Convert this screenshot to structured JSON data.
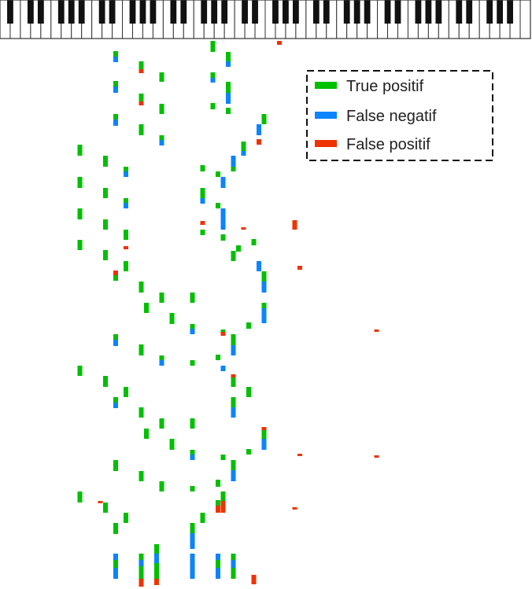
{
  "chart_data": {
    "type": "piano-roll",
    "title": "",
    "xlabel": "",
    "ylabel": "",
    "x_axis": "pitch (piano keyboard, left = low, right = high)",
    "y_axis": "time (top to bottom)",
    "grid": false,
    "legend_position": "top-right",
    "legend": {
      "style": "dashed-box",
      "items": [
        {
          "label": "True positif",
          "color": "#00c000"
        },
        {
          "label": "False negatif",
          "color": "#0a84ff"
        },
        {
          "label": "False positif",
          "color": "#ee3300"
        }
      ]
    },
    "colors": {
      "tp": "#00c000",
      "fn": "#0a84ff",
      "fp": "#ee3300",
      "keyboard_white": "#ffffff",
      "keyboard_black": "#111111",
      "keyboard_outline": "#333333"
    },
    "keyboard": {
      "white_keys": 52
    },
    "notes": [
      {
        "key": 54,
        "t": [
          52,
          57
        ],
        "c": "fp"
      },
      {
        "key": 22,
        "t": [
          65,
          72
        ],
        "c": "tp"
      },
      {
        "key": 22,
        "t": [
          72,
          79
        ],
        "c": "fn"
      },
      {
        "key": 27,
        "t": [
          78,
          88
        ],
        "c": "tp"
      },
      {
        "key": 27,
        "t": [
          88,
          93
        ],
        "c": "fp"
      },
      {
        "key": 31,
        "t": [
          92,
          104
        ],
        "c": "tp"
      },
      {
        "key": 22,
        "t": [
          103,
          110
        ],
        "c": "tp"
      },
      {
        "key": 22,
        "t": [
          110,
          118
        ],
        "c": "fn"
      },
      {
        "key": 27,
        "t": [
          119,
          129
        ],
        "c": "tp"
      },
      {
        "key": 27,
        "t": [
          129,
          134
        ],
        "c": "fp"
      },
      {
        "key": 31,
        "t": [
          132,
          145
        ],
        "c": "tp"
      },
      {
        "key": 22,
        "t": [
          145,
          152
        ],
        "c": "tp"
      },
      {
        "key": 22,
        "t": [
          152,
          160
        ],
        "c": "fn"
      },
      {
        "key": 27,
        "t": [
          158,
          172
        ],
        "c": "tp"
      },
      {
        "key": 31,
        "t": [
          172,
          178
        ],
        "c": "tp"
      },
      {
        "key": 31,
        "t": [
          178,
          185
        ],
        "c": "fn"
      },
      {
        "key": 41,
        "t": [
          52,
          66
        ],
        "c": "tp"
      },
      {
        "key": 44,
        "t": [
          66,
          78
        ],
        "c": "tp"
      },
      {
        "key": 44,
        "t": [
          78,
          85
        ],
        "c": "fn"
      },
      {
        "key": 41,
        "t": [
          92,
          99
        ],
        "c": "tp"
      },
      {
        "key": 41,
        "t": [
          99,
          105
        ],
        "c": "fn"
      },
      {
        "key": 44,
        "t": [
          104,
          118
        ],
        "c": "tp"
      },
      {
        "key": 44,
        "t": [
          118,
          132
        ],
        "c": "fn"
      },
      {
        "key": 41,
        "t": [
          131,
          139
        ],
        "c": "tp"
      },
      {
        "key": 44,
        "t": [
          137,
          145
        ],
        "c": "tp"
      },
      {
        "key": 51,
        "t": [
          145,
          158
        ],
        "c": "tp"
      },
      {
        "key": 50,
        "t": [
          158,
          172
        ],
        "c": "fn"
      },
      {
        "key": 50,
        "t": [
          177,
          184
        ],
        "c": "fp"
      },
      {
        "key": 47,
        "t": [
          180,
          192
        ],
        "c": "tp"
      },
      {
        "key": 47,
        "t": [
          192,
          198
        ],
        "c": "fn"
      },
      {
        "key": 45,
        "t": [
          198,
          212
        ],
        "c": "fn"
      },
      {
        "key": 45,
        "t": [
          212,
          218
        ],
        "c": "tp"
      },
      {
        "key": 15,
        "t": [
          184,
          198
        ],
        "c": "tp"
      },
      {
        "key": 20,
        "t": [
          198,
          212
        ],
        "c": "tp"
      },
      {
        "key": 24,
        "t": [
          212,
          218
        ],
        "c": "tp"
      },
      {
        "key": 24,
        "t": [
          218,
          225
        ],
        "c": "fn"
      },
      {
        "key": 15,
        "t": [
          225,
          239
        ],
        "c": "tp"
      },
      {
        "key": 20,
        "t": [
          239,
          252
        ],
        "c": "tp"
      },
      {
        "key": 24,
        "t": [
          252,
          258
        ],
        "c": "tp"
      },
      {
        "key": 24,
        "t": [
          258,
          265
        ],
        "c": "fn"
      },
      {
        "key": 15,
        "t": [
          265,
          279
        ],
        "c": "tp"
      },
      {
        "key": 20,
        "t": [
          279,
          292
        ],
        "c": "tp"
      },
      {
        "key": 24,
        "t": [
          292,
          305
        ],
        "c": "tp"
      },
      {
        "key": 24,
        "t": [
          313,
          317
        ],
        "c": "fp"
      },
      {
        "key": 15,
        "t": [
          305,
          318
        ],
        "c": "tp"
      },
      {
        "key": 20,
        "t": [
          318,
          331
        ],
        "c": "tp"
      },
      {
        "key": 22,
        "t": [
          344,
          350
        ],
        "c": "fp"
      },
      {
        "key": 22,
        "t": [
          350,
          357
        ],
        "c": "tp"
      },
      {
        "key": 24,
        "t": [
          332,
          345
        ],
        "c": "tp"
      },
      {
        "key": 39,
        "t": [
          210,
          218
        ],
        "c": "tp"
      },
      {
        "key": 42,
        "t": [
          218,
          225
        ],
        "c": "tp"
      },
      {
        "key": 43,
        "t": [
          225,
          239
        ],
        "c": "fn"
      },
      {
        "key": 39,
        "t": [
          239,
          252
        ],
        "c": "tp"
      },
      {
        "key": 39,
        "t": [
          252,
          259
        ],
        "c": "fn"
      },
      {
        "key": 42,
        "t": [
          258,
          265
        ],
        "c": "tp"
      },
      {
        "key": 43,
        "t": [
          265,
          280
        ],
        "c": "fn"
      },
      {
        "key": 43,
        "t": [
          280,
          292
        ],
        "c": "fn"
      },
      {
        "key": 39,
        "t": [
          281,
          286
        ],
        "c": "fp"
      },
      {
        "key": 39,
        "t": [
          292,
          299
        ],
        "c": "tp"
      },
      {
        "key": 47,
        "t": [
          289,
          292
        ],
        "c": "fp"
      },
      {
        "key": 43,
        "t": [
          298,
          306
        ],
        "c": "tp"
      },
      {
        "key": 49,
        "t": [
          304,
          312
        ],
        "c": "tp"
      },
      {
        "key": 46,
        "t": [
          312,
          320
        ],
        "c": "tp"
      },
      {
        "key": 45,
        "t": [
          319,
          332
        ],
        "c": "tp"
      },
      {
        "key": 50,
        "t": [
          332,
          345
        ],
        "c": "fn"
      },
      {
        "key": 51,
        "t": [
          345,
          358
        ],
        "c": "tp"
      },
      {
        "key": 51,
        "t": [
          358,
          372
        ],
        "c": "fn"
      },
      {
        "key": 57,
        "t": [
          280,
          292
        ],
        "c": "fp"
      },
      {
        "key": 58,
        "t": [
          338,
          343
        ],
        "c": "fp"
      },
      {
        "key": 27,
        "t": [
          358,
          372
        ],
        "c": "tp"
      },
      {
        "key": 31,
        "t": [
          372,
          385
        ],
        "c": "tp"
      },
      {
        "key": 28,
        "t": [
          385,
          398
        ],
        "c": "tp"
      },
      {
        "key": 33,
        "t": [
          398,
          412
        ],
        "c": "tp"
      },
      {
        "key": 37,
        "t": [
          372,
          385
        ],
        "c": "tp"
      },
      {
        "key": 37,
        "t": [
          412,
          418
        ],
        "c": "tp"
      },
      {
        "key": 37,
        "t": [
          418,
          425
        ],
        "c": "fn"
      },
      {
        "key": 43,
        "t": [
          419,
          422
        ],
        "c": "tp"
      },
      {
        "key": 43,
        "t": [
          422,
          427
        ],
        "c": "fp"
      },
      {
        "key": 45,
        "t": [
          425,
          440
        ],
        "c": "tp"
      },
      {
        "key": 48,
        "t": [
          410,
          418
        ],
        "c": "tp"
      },
      {
        "key": 51,
        "t": [
          385,
          392
        ],
        "c": "tp"
      },
      {
        "key": 51,
        "t": [
          392,
          411
        ],
        "c": "fn"
      },
      {
        "key": 73,
        "t": [
          419,
          422
        ],
        "c": "fp"
      },
      {
        "key": 22,
        "t": [
          425,
          432
        ],
        "c": "tp"
      },
      {
        "key": 22,
        "t": [
          432,
          440
        ],
        "c": "fn"
      },
      {
        "key": 27,
        "t": [
          438,
          452
        ],
        "c": "tp"
      },
      {
        "key": 31,
        "t": [
          452,
          458
        ],
        "c": "tp"
      },
      {
        "key": 31,
        "t": [
          458,
          465
        ],
        "c": "fn"
      },
      {
        "key": 37,
        "t": [
          458,
          465
        ],
        "c": "tp"
      },
      {
        "key": 42,
        "t": [
          451,
          458
        ],
        "c": "tp"
      },
      {
        "key": 43,
        "t": [
          465,
          472
        ],
        "c": "fn"
      },
      {
        "key": 45,
        "t": [
          439,
          452
        ],
        "c": "fn"
      },
      {
        "key": 45,
        "t": [
          476,
          480
        ],
        "c": "fp"
      },
      {
        "key": 45,
        "t": [
          480,
          492
        ],
        "c": "tp"
      },
      {
        "key": 15,
        "t": [
          465,
          478
        ],
        "c": "tp"
      },
      {
        "key": 20,
        "t": [
          478,
          492
        ],
        "c": "tp"
      },
      {
        "key": 24,
        "t": [
          492,
          505
        ],
        "c": "tp"
      },
      {
        "key": 22,
        "t": [
          505,
          512
        ],
        "c": "tp"
      },
      {
        "key": 22,
        "t": [
          512,
          519
        ],
        "c": "fn"
      },
      {
        "key": 48,
        "t": [
          492,
          505
        ],
        "c": "tp"
      },
      {
        "key": 45,
        "t": [
          505,
          518
        ],
        "c": "tp"
      },
      {
        "key": 45,
        "t": [
          518,
          531
        ],
        "c": "fn"
      },
      {
        "key": 27,
        "t": [
          518,
          531
        ],
        "c": "tp"
      },
      {
        "key": 31,
        "t": [
          532,
          545
        ],
        "c": "tp"
      },
      {
        "key": 28,
        "t": [
          545,
          558
        ],
        "c": "tp"
      },
      {
        "key": 33,
        "t": [
          558,
          572
        ],
        "c": "tp"
      },
      {
        "key": 37,
        "t": [
          532,
          545
        ],
        "c": "tp"
      },
      {
        "key": 37,
        "t": [
          572,
          578
        ],
        "c": "tp"
      },
      {
        "key": 37,
        "t": [
          578,
          585
        ],
        "c": "fn"
      },
      {
        "key": 43,
        "t": [
          578,
          585
        ],
        "c": "tp"
      },
      {
        "key": 48,
        "t": [
          571,
          578
        ],
        "c": "tp"
      },
      {
        "key": 51,
        "t": [
          543,
          547
        ],
        "c": "fp"
      },
      {
        "key": 51,
        "t": [
          547,
          558
        ],
        "c": "tp"
      },
      {
        "key": 51,
        "t": [
          558,
          572
        ],
        "c": "fn"
      },
      {
        "key": 58,
        "t": [
          577,
          580
        ],
        "c": "fp"
      },
      {
        "key": 73,
        "t": [
          579,
          582
        ],
        "c": "fp"
      },
      {
        "key": 22,
        "t": [
          585,
          599
        ],
        "c": "tp"
      },
      {
        "key": 27,
        "t": [
          599,
          612
        ],
        "c": "tp"
      },
      {
        "key": 31,
        "t": [
          612,
          625
        ],
        "c": "tp"
      },
      {
        "key": 45,
        "t": [
          585,
          598
        ],
        "c": "tp"
      },
      {
        "key": 45,
        "t": [
          598,
          612
        ],
        "c": "fn"
      },
      {
        "key": 42,
        "t": [
          610,
          619
        ],
        "c": "tp"
      },
      {
        "key": 37,
        "t": [
          618,
          625
        ],
        "c": "tp"
      },
      {
        "key": 15,
        "t": [
          625,
          639
        ],
        "c": "tp"
      },
      {
        "key": 19,
        "t": [
          637,
          640
        ],
        "c": "fp"
      },
      {
        "key": 20,
        "t": [
          639,
          652
        ],
        "c": "tp"
      },
      {
        "key": 24,
        "t": [
          652,
          665
        ],
        "c": "tp"
      },
      {
        "key": 42,
        "t": [
          637,
          652
        ],
        "c": "fp"
      },
      {
        "key": 43,
        "t": [
          637,
          652
        ],
        "c": "fp"
      },
      {
        "key": 42,
        "t": [
          636,
          643
        ],
        "c": "tp"
      },
      {
        "key": 43,
        "t": [
          625,
          637
        ],
        "c": "tp"
      },
      {
        "key": 39,
        "t": [
          652,
          665
        ],
        "c": "tp"
      },
      {
        "key": 57,
        "t": [
          645,
          648
        ],
        "c": "fp"
      },
      {
        "key": 22,
        "t": [
          665,
          679
        ],
        "c": "tp"
      },
      {
        "key": 37,
        "t": [
          665,
          678
        ],
        "c": "tp"
      },
      {
        "key": 37,
        "t": [
          678,
          698
        ],
        "c": "fn"
      },
      {
        "key": 30,
        "t": [
          692,
          704
        ],
        "c": "tp"
      },
      {
        "key": 22,
        "t": [
          704,
          712
        ],
        "c": "fn"
      },
      {
        "key": 22,
        "t": [
          712,
          722
        ],
        "c": "tp"
      },
      {
        "key": 22,
        "t": [
          722,
          736
        ],
        "c": "fn"
      },
      {
        "key": 27,
        "t": [
          704,
          712
        ],
        "c": "tp"
      },
      {
        "key": 27,
        "t": [
          712,
          720
        ],
        "c": "fn"
      },
      {
        "key": 27,
        "t": [
          720,
          736
        ],
        "c": "tp"
      },
      {
        "key": 27,
        "t": [
          736,
          746
        ],
        "c": "fp"
      },
      {
        "key": 30,
        "t": [
          704,
          716
        ],
        "c": "fn"
      },
      {
        "key": 30,
        "t": [
          716,
          736
        ],
        "c": "tp"
      },
      {
        "key": 30,
        "t": [
          736,
          744
        ],
        "c": "fp"
      },
      {
        "key": 37,
        "t": [
          704,
          736
        ],
        "c": "fn"
      },
      {
        "key": 42,
        "t": [
          704,
          712
        ],
        "c": "fn"
      },
      {
        "key": 42,
        "t": [
          712,
          722
        ],
        "c": "tp"
      },
      {
        "key": 42,
        "t": [
          722,
          736
        ],
        "c": "fn"
      },
      {
        "key": 45,
        "t": [
          704,
          712
        ],
        "c": "tp"
      },
      {
        "key": 45,
        "t": [
          712,
          722
        ],
        "c": "fn"
      },
      {
        "key": 45,
        "t": [
          722,
          736
        ],
        "c": "tp"
      },
      {
        "key": 49,
        "t": [
          731,
          743
        ],
        "c": "fp"
      }
    ]
  }
}
